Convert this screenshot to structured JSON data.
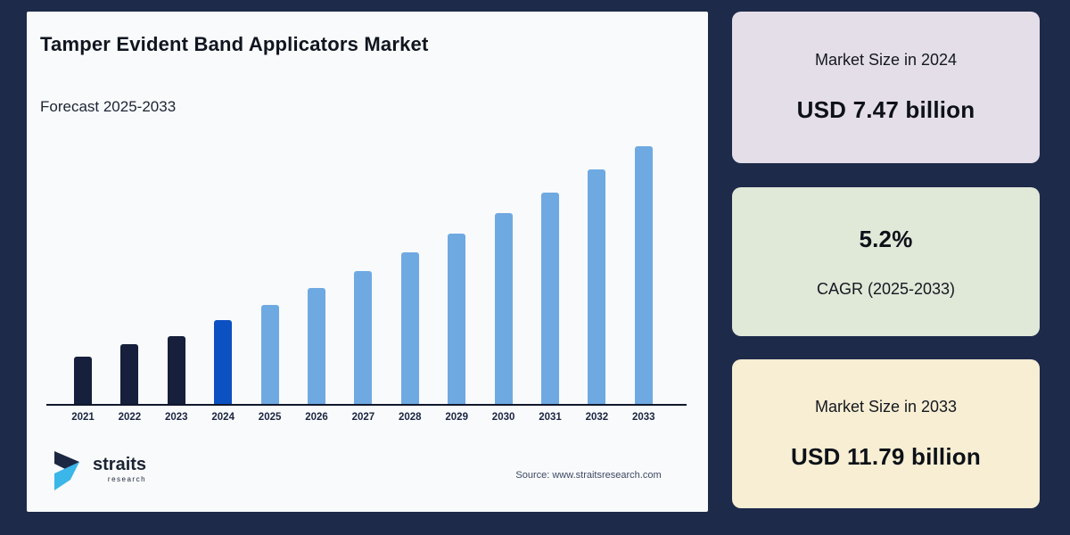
{
  "page": {
    "background": "#1e2a4a"
  },
  "panel": {
    "background": "#f8fafc",
    "title": "Tamper Evident Band Applicators Market",
    "subtitle": "Forecast 2025-2033",
    "source": "Source: www.straitsresearch.com",
    "logo": {
      "brand": "straits",
      "sub": "research"
    }
  },
  "chart_data": {
    "type": "bar",
    "title": "Tamper Evident Band Applicators Market",
    "subtitle": "Forecast 2025-2033",
    "unit": "USD billion",
    "categories": [
      "2021",
      "2022",
      "2023",
      "2024",
      "2025",
      "2026",
      "2027",
      "2028",
      "2029",
      "2030",
      "2031",
      "2032",
      "2033"
    ],
    "values": [
      6.57,
      6.88,
      7.08,
      7.47,
      7.86,
      8.27,
      8.7,
      9.15,
      9.63,
      10.13,
      10.65,
      11.21,
      11.79
    ],
    "labeled_points": {
      "2024": 7.47,
      "2033": 11.79
    },
    "cagr_pct": 5.2,
    "cagr_period": "2025-2033",
    "ylim": [
      5.4,
      11.79
    ],
    "grid": false,
    "legend": false,
    "xlabel": "",
    "ylabel": "",
    "axis_color": "#10182b",
    "bar_colors": {
      "historical_2021_2023": "#161f3b",
      "base_year_2024": "#0b51c2",
      "forecast_2025_2033": "#6fa9e2"
    }
  },
  "cards": [
    {
      "label": "Market Size in 2024",
      "value": "USD 7.47 billion",
      "bg": "#e4dee9"
    },
    {
      "label": "CAGR (2025-2033)",
      "value": "5.2%",
      "bg": "#e0e8d8"
    },
    {
      "label": "Market Size in 2033",
      "value": "USD 11.79 billion",
      "bg": "#f7eed3"
    }
  ],
  "logo_colors": {
    "dark": "#1c2742",
    "cyan": "#3ab6e8"
  }
}
